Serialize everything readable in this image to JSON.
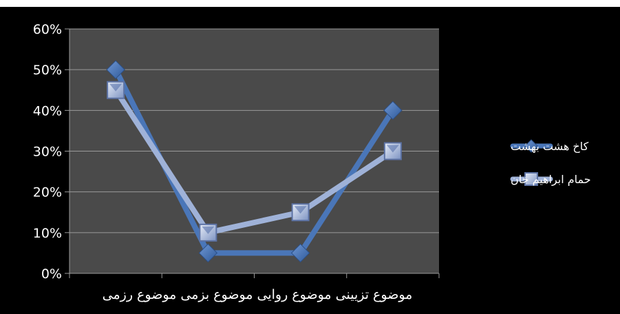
{
  "chart_data": {
    "type": "line",
    "categories": [
      "موضوع تزیینی",
      "موضوع روایی",
      "موضوع بزمی",
      "موضوع رزمی"
    ],
    "series": [
      {
        "name": "کاخ هشت بهشت",
        "values": [
          50,
          5,
          5,
          40
        ],
        "color": "#4a76b8",
        "marker": "diamond"
      },
      {
        "name": "حمام ابراهیم خان",
        "values": [
          45,
          10,
          15,
          30
        ],
        "color": "#9fb2d8",
        "marker": "square"
      }
    ],
    "y_ticks": [
      "0%",
      "10%",
      "20%",
      "30%",
      "40%",
      "50%",
      "60%"
    ],
    "ylim": [
      0,
      60
    ],
    "grid": true,
    "legend_position": "right",
    "plot_background": "#4a4a4a",
    "chart_background": "#000000"
  }
}
